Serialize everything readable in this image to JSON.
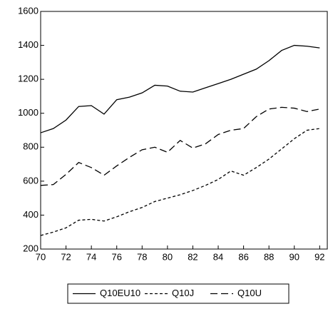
{
  "chart_data": {
    "type": "line",
    "x": [
      1970,
      1971,
      1972,
      1973,
      1974,
      1975,
      1976,
      1977,
      1978,
      1979,
      1980,
      1981,
      1982,
      1983,
      1984,
      1985,
      1986,
      1987,
      1988,
      1989,
      1990,
      1991,
      1992
    ],
    "series": [
      {
        "name": "Q10EU10",
        "color": "#000000",
        "dash": "none",
        "values": [
          885,
          910,
          960,
          1040,
          1045,
          995,
          1080,
          1095,
          1120,
          1165,
          1160,
          1130,
          1125,
          1150,
          1175,
          1200,
          1230,
          1260,
          1310,
          1370,
          1400,
          1395,
          1385
        ]
      },
      {
        "name": "Q10J",
        "color": "#000000",
        "dash": "4 3",
        "values": [
          280,
          300,
          325,
          370,
          375,
          365,
          390,
          420,
          445,
          480,
          500,
          520,
          545,
          575,
          610,
          660,
          635,
          680,
          730,
          790,
          850,
          900,
          910
        ]
      },
      {
        "name": "Q10U",
        "color": "#000000",
        "dash": "10 5",
        "values": [
          575,
          580,
          640,
          710,
          680,
          635,
          690,
          740,
          785,
          800,
          770,
          840,
          795,
          820,
          875,
          900,
          910,
          980,
          1025,
          1035,
          1030,
          1010,
          1025
        ]
      }
    ],
    "xlim": [
      1970,
      1992.6
    ],
    "xticks": [
      {
        "value": 1970,
        "label": "70"
      },
      {
        "value": 1972,
        "label": "72"
      },
      {
        "value": 1974,
        "label": "74"
      },
      {
        "value": 1976,
        "label": "76"
      },
      {
        "value": 1978,
        "label": "78"
      },
      {
        "value": 1980,
        "label": "80"
      },
      {
        "value": 1982,
        "label": "82"
      },
      {
        "value": 1984,
        "label": "84"
      },
      {
        "value": 1986,
        "label": "86"
      },
      {
        "value": 1988,
        "label": "88"
      },
      {
        "value": 1990,
        "label": "90"
      },
      {
        "value": 1992,
        "label": "92"
      }
    ],
    "ylim": [
      200,
      1600
    ],
    "yticks": [
      200,
      400,
      600,
      800,
      1000,
      1200,
      1400,
      1600
    ],
    "legend": "bottom"
  }
}
